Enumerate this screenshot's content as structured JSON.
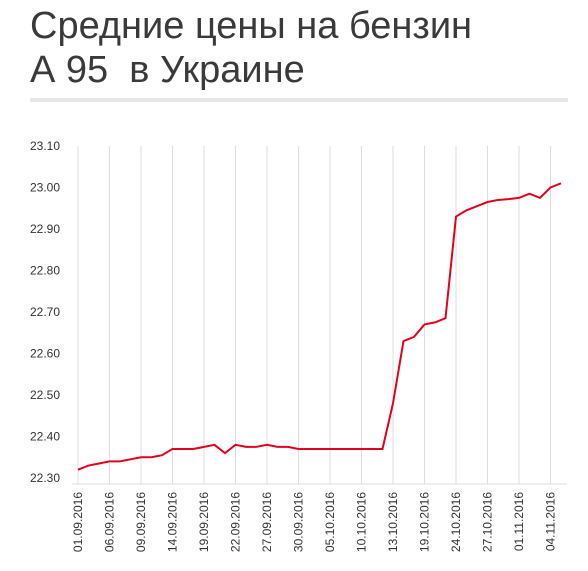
{
  "chart_data": {
    "type": "line",
    "title": [
      "Средние цены на бензин",
      "А 95  в Украине"
    ],
    "categories": [
      "01.09.2016",
      null,
      null,
      "06.09.2016",
      null,
      null,
      "09.09.2016",
      null,
      null,
      "14.09.2016",
      null,
      null,
      "19.09.2016",
      null,
      null,
      "22.09.2016",
      null,
      null,
      "27.09.2016",
      null,
      null,
      "30.09.2016",
      null,
      null,
      "05.10.2016",
      null,
      null,
      "10.10.2016",
      null,
      null,
      "13.10.2016",
      null,
      null,
      "19.10.2016",
      null,
      null,
      "24.10.2016",
      null,
      null,
      "27.10.2016",
      null,
      null,
      "01.11.2016",
      null,
      null,
      "04.11.2016",
      null
    ],
    "series": [
      {
        "color": "#e3001b",
        "values": [
          22.32,
          22.33,
          22.335,
          22.34,
          22.34,
          22.345,
          22.35,
          22.35,
          22.355,
          22.37,
          22.37,
          22.37,
          22.375,
          22.38,
          22.36,
          22.38,
          22.375,
          22.375,
          22.38,
          22.375,
          22.375,
          22.37,
          22.37,
          22.37,
          22.37,
          22.37,
          22.37,
          22.37,
          22.37,
          22.37,
          22.48,
          22.63,
          22.64,
          22.67,
          22.675,
          22.685,
          22.93,
          22.945,
          22.955,
          22.965,
          22.97,
          22.972,
          22.975,
          22.985,
          22.975,
          23.0,
          23.01
        ]
      }
    ],
    "ylim": [
      22.3,
      23.1
    ],
    "yticks": [
      {
        "value": 22.3,
        "label": "22.30"
      },
      {
        "value": 22.4,
        "label": "22.40"
      },
      {
        "value": 22.5,
        "label": "22.50"
      },
      {
        "value": 22.6,
        "label": "22.60"
      },
      {
        "value": 22.7,
        "label": "22.70"
      },
      {
        "value": 22.8,
        "label": "22.80"
      },
      {
        "value": 22.9,
        "label": "22.90"
      },
      {
        "value": 23.0,
        "label": "23.00"
      },
      {
        "value": 23.1,
        "label": "23.10"
      }
    ],
    "grid": true
  }
}
